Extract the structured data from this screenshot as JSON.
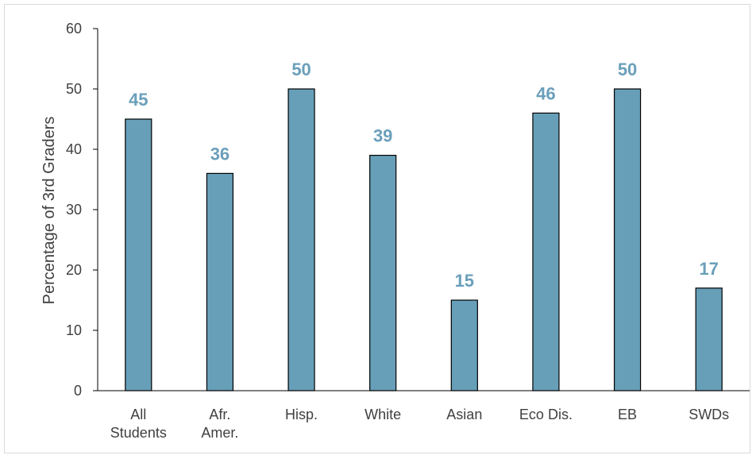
{
  "chart_data": {
    "type": "bar",
    "categories": [
      [
        "All",
        "Students"
      ],
      [
        "Afr.",
        "Amer."
      ],
      [
        "Hisp."
      ],
      [
        "White"
      ],
      [
        "Asian"
      ],
      [
        "Eco Dis."
      ],
      [
        "EB"
      ],
      [
        "SWDs"
      ]
    ],
    "values": [
      45,
      36,
      50,
      39,
      15,
      46,
      50,
      17
    ],
    "data_labels": [
      "45",
      "36",
      "50",
      "39",
      "15",
      "46",
      "50",
      "17"
    ],
    "title": "",
    "xlabel": "",
    "ylabel": "Percentage of 3rd Graders",
    "ylim": [
      0,
      60
    ],
    "yticks": [
      0,
      10,
      20,
      30,
      40,
      50,
      60
    ],
    "grid": false,
    "legend": "none",
    "colors": {
      "bar_fill": "#679fb8",
      "bar_stroke": "#000000",
      "data_label": "#6a9fba",
      "axis": "#000000"
    }
  }
}
